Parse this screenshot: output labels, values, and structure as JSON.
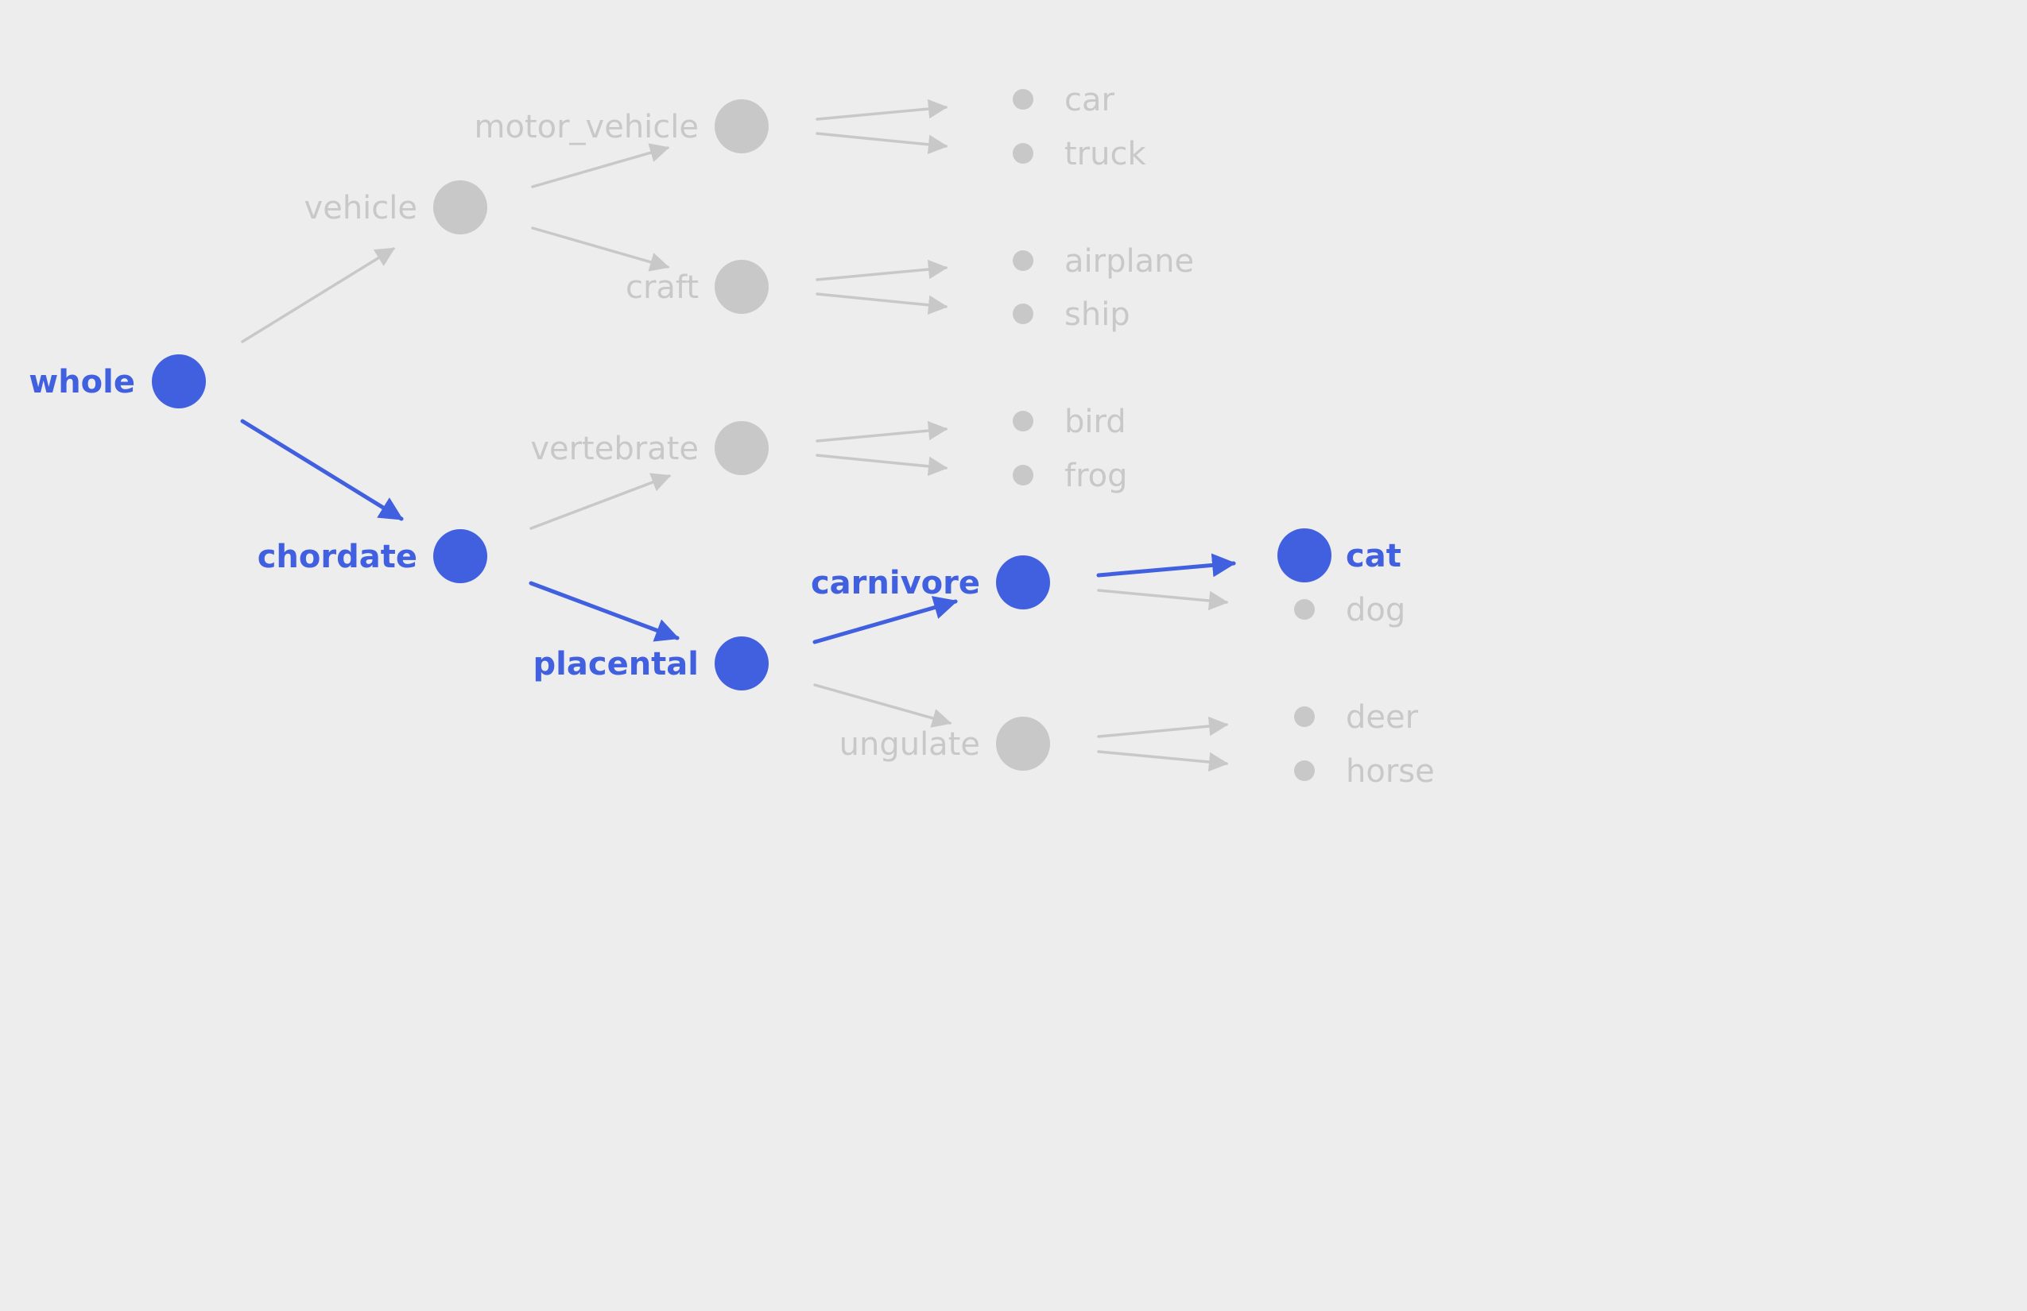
{
  "colors": {
    "background": "#ededed",
    "active": "#4160e0",
    "muted": "#c8c8c8"
  },
  "root": {
    "label": "whole",
    "active": true,
    "children": [
      {
        "label": "vehicle",
        "active": false,
        "children": [
          {
            "label": "motor_vehicle",
            "active": false,
            "leaves": [
              {
                "label": "car",
                "active": false
              },
              {
                "label": "truck",
                "active": false
              }
            ]
          },
          {
            "label": "craft",
            "active": false,
            "leaves": [
              {
                "label": "airplane",
                "active": false
              },
              {
                "label": "ship",
                "active": false
              }
            ]
          }
        ]
      },
      {
        "label": "chordate",
        "active": true,
        "children": [
          {
            "label": "vertebrate",
            "active": false,
            "leaves": [
              {
                "label": "bird",
                "active": false
              },
              {
                "label": "frog",
                "active": false
              }
            ]
          },
          {
            "label": "placental",
            "active": true,
            "children": [
              {
                "label": "carnivore",
                "active": true,
                "leaves": [
                  {
                    "label": "cat",
                    "active": true
                  },
                  {
                    "label": "dog",
                    "active": false
                  }
                ]
              },
              {
                "label": "ungulate",
                "active": false,
                "leaves": [
                  {
                    "label": "deer",
                    "active": false
                  },
                  {
                    "label": "horse",
                    "active": false
                  }
                ]
              }
            ]
          }
        ]
      }
    ]
  }
}
